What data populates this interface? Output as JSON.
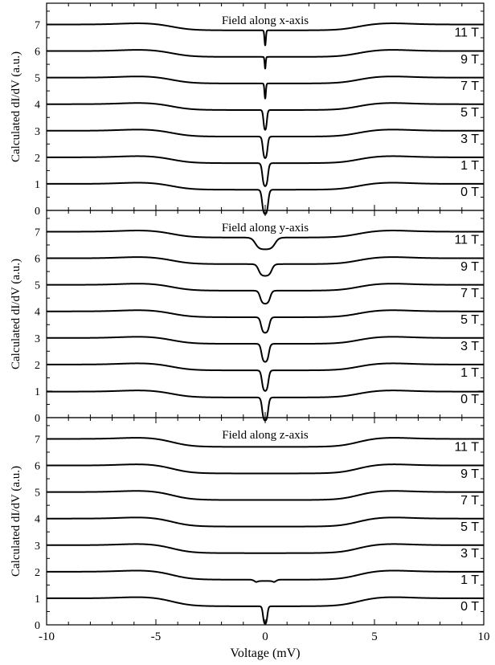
{
  "chart_data": [
    {
      "type": "line",
      "title": "Field along x-axis",
      "ylabel": "Calculated dI/dV (a.u.)",
      "xlim": [
        -10,
        10
      ],
      "ylim": [
        0,
        7.8
      ],
      "x_ticks": [],
      "y_ticks": [
        "0",
        "1",
        "2",
        "3",
        "4",
        "5",
        "6",
        "7"
      ],
      "series": [
        {
          "name": "0 T",
          "offset": 0,
          "base": 1.0,
          "dip": 0.22,
          "gapw": 0.14,
          "gapdepth": 0.95,
          "splitw": 0
        },
        {
          "name": "1 T",
          "offset": 1,
          "base": 1.0,
          "dip": 0.22,
          "gapw": 0.13,
          "gapdepth": 0.9,
          "splitw": 0
        },
        {
          "name": "3 T",
          "offset": 2,
          "base": 1.0,
          "dip": 0.22,
          "gapw": 0.11,
          "gapdepth": 0.85,
          "splitw": 0
        },
        {
          "name": "5 T",
          "offset": 3,
          "base": 1.0,
          "dip": 0.22,
          "gapw": 0.08,
          "gapdepth": 0.8,
          "splitw": 0
        },
        {
          "name": "7 T",
          "offset": 4,
          "base": 1.0,
          "dip": 0.22,
          "gapw": 0.03,
          "gapdepth": 0.75,
          "splitw": 0
        },
        {
          "name": "9 T",
          "offset": 5,
          "base": 1.0,
          "dip": 0.22,
          "gapw": 0.02,
          "gapdepth": 0.7,
          "splitw": 0
        },
        {
          "name": "11 T",
          "offset": 6,
          "base": 1.0,
          "dip": 0.22,
          "gapw": 0.03,
          "gapdepth": 0.75,
          "splitw": 0
        }
      ]
    },
    {
      "type": "line",
      "title": "Field along y-axis",
      "ylabel": "Calculated dI/dV (a.u.)",
      "xlim": [
        -10,
        10
      ],
      "ylim": [
        0,
        7.8
      ],
      "x_ticks": [],
      "y_ticks": [
        "0",
        "1",
        "2",
        "3",
        "4",
        "5",
        "6",
        "7"
      ],
      "series": [
        {
          "name": "0 T",
          "offset": 0,
          "base": 0.98,
          "dip": 0.22,
          "gapw": 0.14,
          "gapdepth": 0.9,
          "splitw": 0
        },
        {
          "name": "1 T",
          "offset": 1,
          "base": 1.0,
          "dip": 0.22,
          "gapw": 0.15,
          "gapdepth": 0.8,
          "splitw": 0
        },
        {
          "name": "3 T",
          "offset": 2,
          "base": 1.0,
          "dip": 0.22,
          "gapw": 0.17,
          "gapdepth": 0.7,
          "splitw": 0
        },
        {
          "name": "5 T",
          "offset": 3,
          "base": 1.0,
          "dip": 0.22,
          "gapw": 0.19,
          "gapdepth": 0.6,
          "splitw": 0
        },
        {
          "name": "7 T",
          "offset": 4,
          "base": 1.0,
          "dip": 0.22,
          "gapw": 0.23,
          "gapdepth": 0.5,
          "splitw": 0
        },
        {
          "name": "9 T",
          "offset": 5,
          "base": 1.0,
          "dip": 0.22,
          "gapw": 0.3,
          "gapdepth": 0.45,
          "splitw": 0
        },
        {
          "name": "11 T",
          "offset": 6,
          "base": 1.0,
          "dip": 0.22,
          "gapw": 0.45,
          "gapdepth": 0.45,
          "splitw": 0
        }
      ]
    },
    {
      "type": "line",
      "title": "Field along z-axis",
      "ylabel": "Calculated dI/dV (a.u.)",
      "xlabel": "Voltage (mV)",
      "xlim": [
        -10,
        10
      ],
      "ylim": [
        0,
        7.8
      ],
      "x_ticks": [
        "-10",
        "-5",
        "0",
        "5",
        "10"
      ],
      "y_ticks": [
        "0",
        "1",
        "2",
        "3",
        "4",
        "5",
        "6",
        "7"
      ],
      "series": [
        {
          "name": "0 T",
          "offset": 0,
          "base": 1.0,
          "dip": 0.3,
          "gapw": 0.1,
          "gapdepth": 0.7,
          "splitw": 0
        },
        {
          "name": "1 T",
          "offset": 1,
          "base": 1.0,
          "dip": 0.3,
          "gapw": 0.45,
          "gapdepth": 0.05,
          "splitw": 0.45
        },
        {
          "name": "3 T",
          "offset": 2,
          "base": 1.0,
          "dip": 0.3,
          "gapw": 0,
          "gapdepth": 0,
          "splitw": 0
        },
        {
          "name": "5 T",
          "offset": 3,
          "base": 1.0,
          "dip": 0.3,
          "gapw": 0,
          "gapdepth": 0,
          "splitw": 0
        },
        {
          "name": "7 T",
          "offset": 4,
          "base": 1.0,
          "dip": 0.3,
          "gapw": 0,
          "gapdepth": 0,
          "splitw": 0
        },
        {
          "name": "9 T",
          "offset": 5,
          "base": 1.0,
          "dip": 0.3,
          "gapw": 0,
          "gapdepth": 0,
          "splitw": 0
        },
        {
          "name": "11 T",
          "offset": 6,
          "base": 1.0,
          "dip": 0.3,
          "gapw": 0,
          "gapdepth": 0,
          "splitw": 0
        }
      ]
    }
  ],
  "colors": {
    "line": "#000000",
    "axis": "#000000",
    "background": "#ffffff"
  }
}
